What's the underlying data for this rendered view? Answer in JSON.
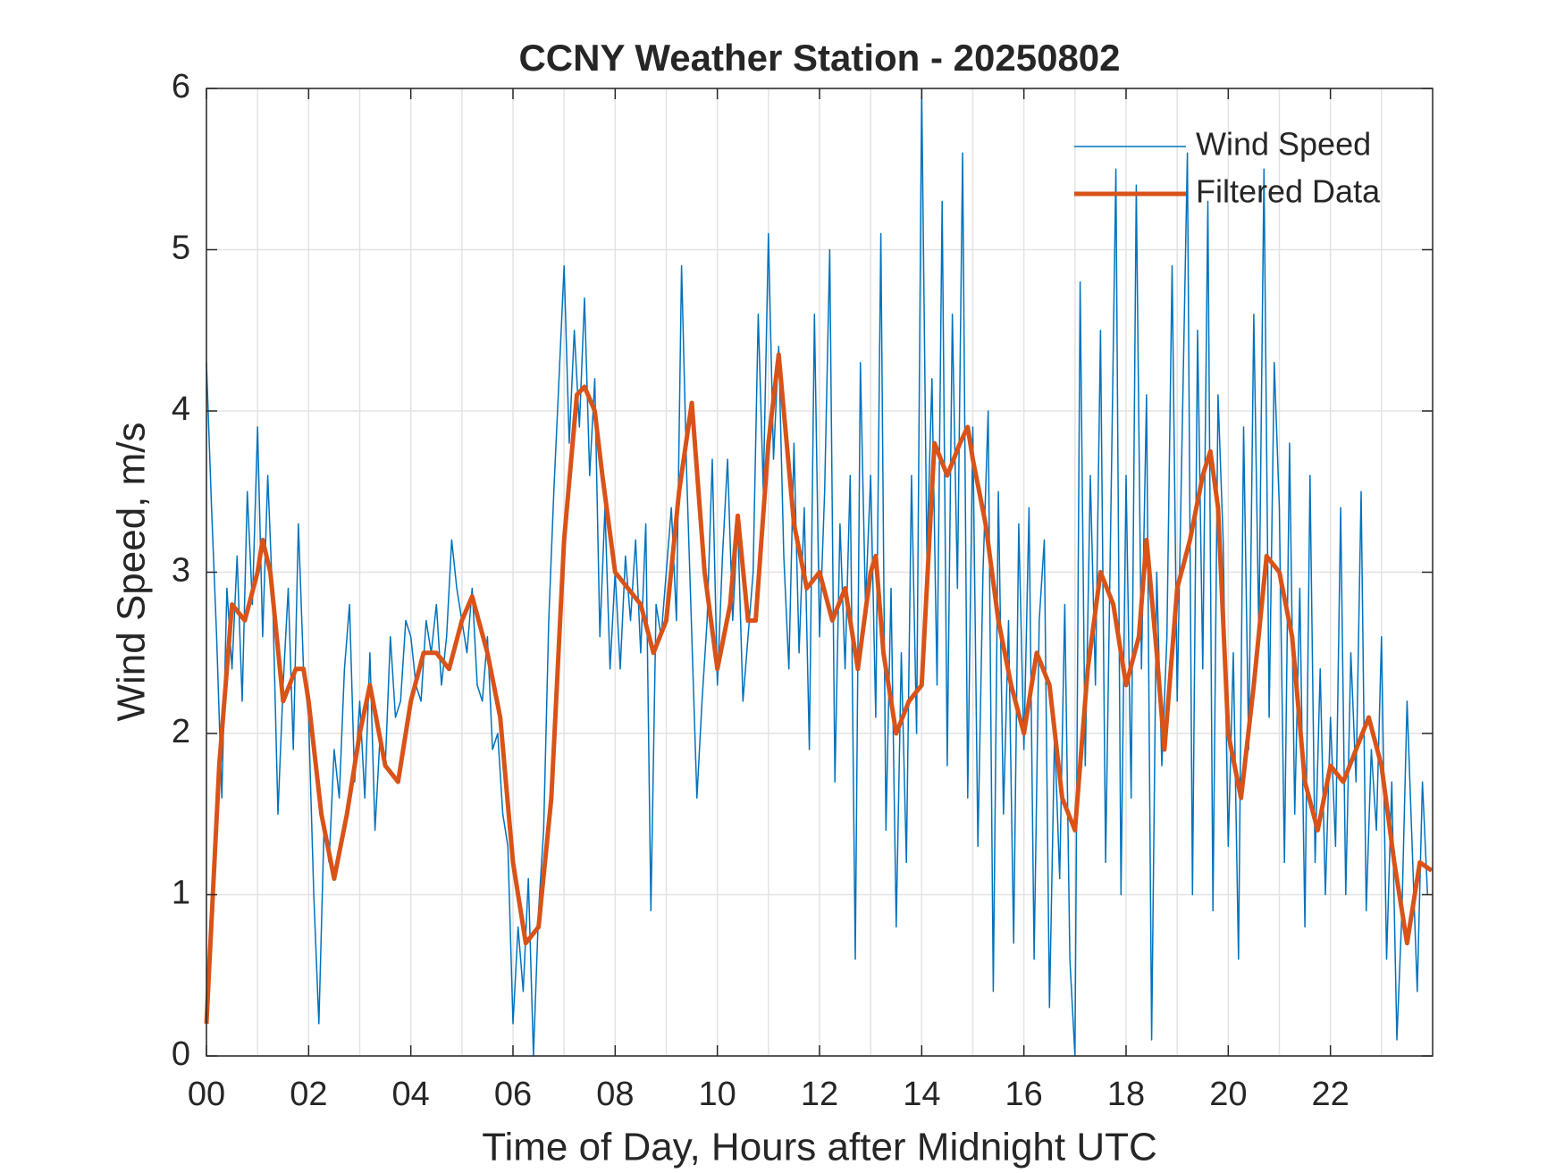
{
  "chart_data": {
    "type": "line",
    "title": "CCNY Weather Station - 20250802",
    "xlabel": "Time of Day, Hours after Midnight UTC",
    "ylabel": "Wind Speed, m/s",
    "xlim": [
      0,
      24
    ],
    "ylim": [
      0,
      6
    ],
    "xticks": [
      {
        "value": 0,
        "label": "00"
      },
      {
        "value": 2,
        "label": "02"
      },
      {
        "value": 4,
        "label": "04"
      },
      {
        "value": 6,
        "label": "06"
      },
      {
        "value": 8,
        "label": "08"
      },
      10,
      12,
      14,
      16,
      18,
      20,
      22
    ],
    "xminorticks": [
      1,
      3,
      5,
      7,
      9,
      11,
      13,
      15,
      17,
      19,
      21,
      23
    ],
    "yticks": [
      0,
      1,
      2,
      3,
      4,
      5,
      6
    ],
    "grid": true,
    "legend": "northeast",
    "series": [
      {
        "name": "Wind Speed",
        "color": "#0072BD",
        "width": 1.5,
        "x": [
          0,
          0.1,
          0.2,
          0.3,
          0.4,
          0.5,
          0.6,
          0.7,
          0.8,
          0.9,
          1,
          1.1,
          1.2,
          1.3,
          1.4,
          1.5,
          1.6,
          1.7,
          1.8,
          1.9,
          2,
          2.1,
          2.2,
          2.3,
          2.4,
          2.5,
          2.6,
          2.7,
          2.8,
          2.9,
          3,
          3.1,
          3.2,
          3.3,
          3.4,
          3.5,
          3.6,
          3.7,
          3.8,
          3.9,
          4,
          4.1,
          4.2,
          4.3,
          4.4,
          4.5,
          4.6,
          4.7,
          4.8,
          4.9,
          5,
          5.1,
          5.2,
          5.3,
          5.4,
          5.5,
          5.6,
          5.7,
          5.8,
          5.9,
          6,
          6.1,
          6.2,
          6.3,
          6.4,
          6.5,
          6.6,
          6.7,
          6.8,
          6.9,
          7,
          7.1,
          7.2,
          7.3,
          7.4,
          7.5,
          7.6,
          7.7,
          7.8,
          7.9,
          8,
          8.1,
          8.2,
          8.3,
          8.4,
          8.5,
          8.6,
          8.7,
          8.8,
          8.9,
          9,
          9.1,
          9.2,
          9.3,
          9.4,
          9.5,
          9.6,
          9.7,
          9.8,
          9.9,
          10,
          10.1,
          10.2,
          10.3,
          10.4,
          10.5,
          10.6,
          10.7,
          10.8,
          10.9,
          11,
          11.1,
          11.2,
          11.3,
          11.4,
          11.5,
          11.6,
          11.7,
          11.8,
          11.9,
          12,
          12.1,
          12.2,
          12.3,
          12.4,
          12.5,
          12.6,
          12.7,
          12.8,
          12.9,
          13,
          13.1,
          13.2,
          13.3,
          13.4,
          13.5,
          13.6,
          13.7,
          13.8,
          13.9,
          14,
          14.1,
          14.2,
          14.3,
          14.4,
          14.5,
          14.6,
          14.7,
          14.8,
          14.9,
          15,
          15.1,
          15.2,
          15.3,
          15.4,
          15.5,
          15.6,
          15.7,
          15.8,
          15.9,
          16,
          16.1,
          16.2,
          16.3,
          16.4,
          16.5,
          16.6,
          16.7,
          16.8,
          16.9,
          17,
          17.1,
          17.2,
          17.3,
          17.4,
          17.5,
          17.6,
          17.7,
          17.8,
          17.9,
          18,
          18.1,
          18.2,
          18.3,
          18.4,
          18.5,
          18.6,
          18.7,
          18.8,
          18.9,
          19,
          19.1,
          19.2,
          19.3,
          19.4,
          19.5,
          19.6,
          19.7,
          19.8,
          19.9,
          20,
          20.1,
          20.2,
          20.3,
          20.4,
          20.5,
          20.6,
          20.7,
          20.8,
          20.9,
          21,
          21.1,
          21.2,
          21.3,
          21.4,
          21.5,
          21.6,
          21.7,
          21.8,
          21.9,
          22,
          22.1,
          22.2,
          22.3,
          22.4,
          22.5,
          22.6,
          22.7,
          22.8,
          22.9,
          23,
          23.1,
          23.2,
          23.3,
          23.4,
          23.5,
          23.6,
          23.7,
          23.8,
          23.9
        ],
        "values": [
          4.3,
          3.4,
          2.6,
          1.6,
          2.9,
          2.4,
          3.1,
          2.2,
          3.5,
          2.8,
          3.9,
          2.6,
          3.6,
          2.8,
          1.5,
          2.3,
          2.9,
          1.9,
          3.3,
          2.4,
          2.1,
          1.0,
          0.2,
          1.4,
          1.2,
          1.9,
          1.6,
          2.4,
          2.8,
          1.7,
          2.2,
          1.6,
          2.5,
          1.4,
          2.0,
          1.8,
          2.6,
          2.1,
          2.2,
          2.7,
          2.6,
          2.3,
          2.2,
          2.7,
          2.5,
          2.8,
          2.3,
          2.6,
          3.2,
          2.9,
          2.7,
          2.5,
          2.9,
          2.3,
          2.2,
          2.6,
          1.9,
          2.0,
          1.5,
          1.3,
          0.2,
          0.8,
          0.4,
          1.1,
          0.0,
          0.9,
          1.4,
          2.7,
          3.5,
          4.2,
          4.9,
          3.8,
          4.5,
          3.9,
          4.7,
          3.6,
          4.2,
          2.6,
          3.4,
          2.4,
          3.0,
          2.4,
          3.1,
          2.7,
          3.2,
          2.5,
          3.3,
          0.9,
          2.8,
          2.6,
          3.0,
          3.4,
          2.7,
          4.9,
          3.6,
          2.6,
          1.6,
          2.2,
          2.7,
          3.7,
          2.3,
          3.1,
          3.7,
          2.7,
          3.3,
          2.2,
          2.6,
          3.0,
          4.6,
          3.5,
          5.1,
          3.7,
          4.4,
          3.1,
          2.4,
          3.8,
          2.5,
          3.4,
          1.9,
          4.6,
          2.6,
          3.5,
          5.0,
          1.7,
          3.3,
          2.4,
          3.6,
          0.6,
          4.3,
          2.8,
          3.6,
          2.1,
          5.1,
          1.4,
          2.9,
          0.8,
          2.5,
          1.2,
          3.6,
          2.0,
          6.0,
          3.1,
          4.2,
          2.3,
          5.3,
          1.8,
          4.6,
          2.9,
          5.6,
          1.6,
          3.9,
          1.3,
          3.0,
          4.0,
          0.4,
          3.5,
          1.5,
          2.7,
          0.7,
          3.3,
          1.9,
          3.4,
          0.6,
          2.7,
          3.2,
          0.3,
          2.0,
          1.1,
          2.8,
          0.6,
          0.0,
          4.8,
          1.8,
          3.6,
          2.3,
          4.5,
          1.2,
          3.3,
          5.5,
          1.0,
          3.6,
          1.6,
          5.4,
          2.4,
          4.1,
          0.1,
          3.0,
          1.8,
          2.6,
          4.9,
          2.2,
          3.9,
          5.6,
          1.0,
          4.5,
          2.4,
          5.3,
          0.9,
          4.1,
          3.2,
          1.3,
          2.5,
          0.6,
          3.9,
          1.9,
          4.6,
          2.6,
          5.5,
          2.1,
          4.3,
          3.4,
          1.2,
          3.8,
          1.5,
          2.9,
          0.8,
          3.6,
          1.2,
          2.4,
          1.0,
          2.1,
          1.3,
          3.4,
          1.0,
          2.5,
          1.7,
          3.5,
          0.9,
          1.9,
          1.4,
          2.6,
          0.6,
          1.7,
          0.1,
          0.9,
          2.2,
          1.3,
          0.4,
          1.7,
          1.0
        ]
      },
      {
        "name": "Filtered Data",
        "color": "#D95319",
        "width": 5,
        "x": [
          0,
          0.25,
          0.5,
          0.75,
          1,
          1.1,
          1.25,
          1.5,
          1.75,
          1.9,
          2,
          2.25,
          2.5,
          2.75,
          3,
          3.2,
          3.5,
          3.75,
          4,
          4.25,
          4.5,
          4.75,
          5,
          5.2,
          5.5,
          5.75,
          6,
          6.25,
          6.5,
          6.75,
          7,
          7.25,
          7.4,
          7.6,
          7.75,
          8,
          8.25,
          8.5,
          8.75,
          9,
          9.25,
          9.5,
          9.75,
          10,
          10.25,
          10.4,
          10.6,
          10.75,
          11,
          11.2,
          11.5,
          11.75,
          12,
          12.25,
          12.5,
          12.75,
          13,
          13.1,
          13.25,
          13.5,
          13.75,
          14,
          14.25,
          14.5,
          14.75,
          14.9,
          15,
          15.25,
          15.5,
          15.75,
          16,
          16.25,
          16.5,
          16.75,
          17,
          17.25,
          17.5,
          17.75,
          18,
          18.25,
          18.4,
          18.6,
          18.75,
          19,
          19.25,
          19.5,
          19.65,
          19.8,
          20,
          20.25,
          20.5,
          20.75,
          21,
          21.25,
          21.5,
          21.75,
          22,
          22.25,
          22.5,
          22.75,
          23,
          23.25,
          23.5,
          23.75,
          23.98
        ],
        "values": [
          0.2,
          1.8,
          2.8,
          2.7,
          3.0,
          3.2,
          3.0,
          2.2,
          2.4,
          2.4,
          2.2,
          1.5,
          1.1,
          1.5,
          2.0,
          2.3,
          1.8,
          1.7,
          2.2,
          2.5,
          2.5,
          2.4,
          2.7,
          2.85,
          2.5,
          2.1,
          1.2,
          0.7,
          0.8,
          1.6,
          3.2,
          4.1,
          4.15,
          4.0,
          3.6,
          3.0,
          2.9,
          2.8,
          2.5,
          2.7,
          3.5,
          4.05,
          3.0,
          2.4,
          2.8,
          3.35,
          2.7,
          2.7,
          3.8,
          4.35,
          3.3,
          2.9,
          3.0,
          2.7,
          2.9,
          2.4,
          3.0,
          3.1,
          2.5,
          2.0,
          2.2,
          2.3,
          3.8,
          3.6,
          3.8,
          3.9,
          3.7,
          3.3,
          2.7,
          2.3,
          2.0,
          2.5,
          2.3,
          1.6,
          1.4,
          2.4,
          3.0,
          2.8,
          2.3,
          2.6,
          3.2,
          2.5,
          1.9,
          2.9,
          3.2,
          3.6,
          3.75,
          3.4,
          2.0,
          1.6,
          2.3,
          3.1,
          3.0,
          2.6,
          1.7,
          1.4,
          1.8,
          1.7,
          1.9,
          2.1,
          1.8,
          1.2,
          0.7,
          1.2,
          1.15
        ]
      }
    ]
  }
}
